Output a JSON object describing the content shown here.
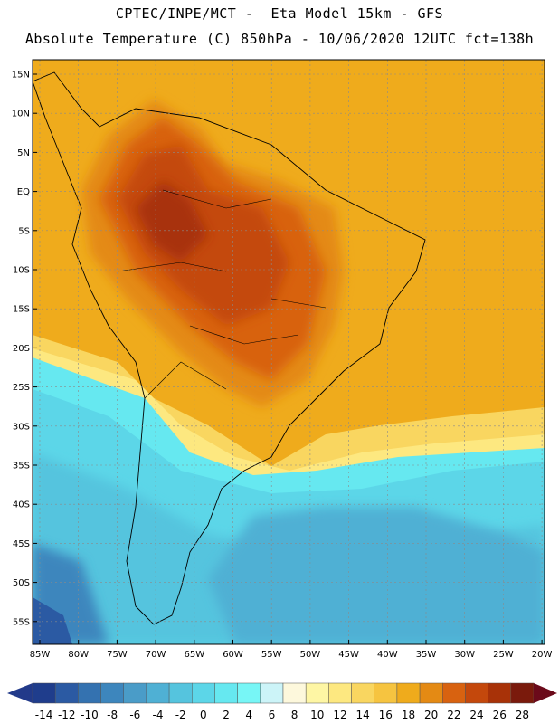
{
  "header": {
    "line1": "CPTEC/INPE/MCT -  Eta Model 15km - GFS",
    "line2": "Absolute Temperature (C) 850hPa - 10/06/2020 12UTC fct=138h"
  },
  "map": {
    "lat_labels": [
      "15N",
      "10N",
      "5N",
      "EQ",
      "5S",
      "10S",
      "15S",
      "20S",
      "25S",
      "30S",
      "35S",
      "40S",
      "45S",
      "50S",
      "55S"
    ],
    "lon_labels": [
      "85W",
      "80W",
      "75W",
      "70W",
      "65W",
      "60W",
      "55W",
      "50W",
      "45W",
      "40W",
      "35W",
      "30W",
      "25W",
      "20W"
    ],
    "lon_range": [
      -85,
      -20
    ],
    "lat_range": [
      -58,
      17
    ]
  },
  "colorbar": {
    "labels": [
      "-14",
      "-12",
      "-10",
      "-8",
      "-6",
      "-4",
      "-2",
      "0",
      "2",
      "4",
      "6",
      "8",
      "10",
      "12",
      "14",
      "16",
      "18",
      "20",
      "22",
      "24",
      "26",
      "28"
    ],
    "colors": [
      "#1f3d8c",
      "#2b5aa3",
      "#3472b0",
      "#3d86bd",
      "#4a9cc8",
      "#4fb0d4",
      "#55c4de",
      "#5cd6e8",
      "#66e8f0",
      "#77f6f6",
      "#ccf4f8",
      "#fdf8dc",
      "#fef6a4",
      "#fde880",
      "#f9d660",
      "#f6c440",
      "#efab1c",
      "#e48a14",
      "#d86210",
      "#c4480c",
      "#a83208",
      "#7a1a0c"
    ],
    "under_color": "#223a8a",
    "over_color": "#6b0a1a"
  }
}
